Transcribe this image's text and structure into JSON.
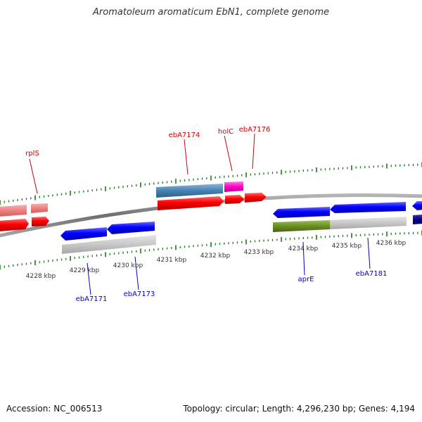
{
  "title": "Aromatoleum aromaticum EbN1, complete genome",
  "footer": {
    "accession": "Accession: NC_006513",
    "summary": "Topology: circular; Length: 4,296,230 bp; Genes: 4,194"
  },
  "colors": {
    "forward_cds": "#ff0000",
    "forward_gene_faded": "#f08080",
    "reverse_cds": "#0000ff",
    "reverse_cds_dark": "#00008b",
    "steelblue_gene": "#4682b4",
    "magenta_gene": "#ff00c8",
    "olive_gene": "#6b8e23",
    "gray_gene": "#c8c8c8",
    "ticks": "#1a7a1a",
    "backbone": "#808080",
    "forward_label": "#cc0000",
    "reverse_label": "#0000cc"
  },
  "kbp_labels": [
    "4228 kbp",
    "4229 kbp",
    "4230 kbp",
    "4231 kbp",
    "4232 kbp",
    "4233 kbp",
    "4234 kbp",
    "4235 kbp",
    "4236 kbp"
  ],
  "forward_labels": [
    "rplS",
    "ebA7174",
    "holC",
    "ebA7176"
  ],
  "reverse_labels": [
    "ebA7171",
    "ebA7173",
    "aprE",
    "ebA7181"
  ]
}
